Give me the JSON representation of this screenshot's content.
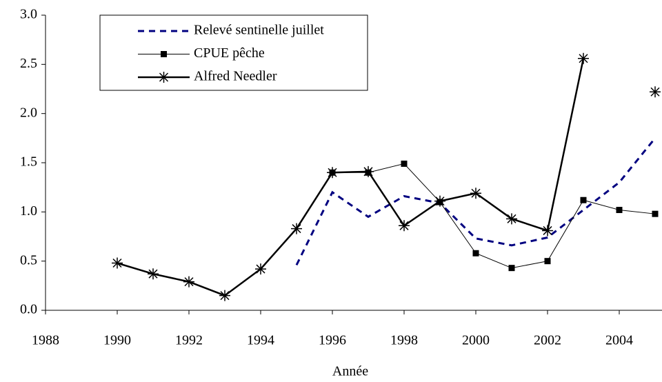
{
  "chart_data": {
    "type": "line",
    "x_label": "Année",
    "x": [
      1990,
      1991,
      1992,
      1993,
      1994,
      1995,
      1996,
      1997,
      1998,
      1999,
      2000,
      2001,
      2002,
      2003,
      2004,
      2005
    ],
    "series": [
      {
        "name": "Relevé sentinelle juillet",
        "color": "#000080",
        "line_style": "dashed",
        "marker": "none",
        "values": [
          null,
          null,
          null,
          null,
          null,
          0.46,
          1.2,
          0.95,
          1.16,
          1.09,
          0.73,
          0.66,
          0.74,
          1.02,
          1.3,
          1.75
        ]
      },
      {
        "name": "CPUE pêche",
        "color": "#000000",
        "line_style": "thin",
        "marker": "square",
        "values": [
          null,
          null,
          null,
          null,
          null,
          null,
          1.4,
          1.4,
          1.49,
          1.1,
          0.58,
          0.43,
          0.5,
          1.12,
          1.02,
          0.98
        ]
      },
      {
        "name": "Alfred Needler",
        "color": "#000000",
        "line_style": "thick",
        "marker": "asterisk",
        "values": [
          0.48,
          0.37,
          0.29,
          0.15,
          0.42,
          0.83,
          1.4,
          1.41,
          0.86,
          1.11,
          1.19,
          0.93,
          0.81,
          2.56,
          null,
          2.22
        ]
      }
    ],
    "xlim": [
      1988,
      2005
    ],
    "xticks": [
      1988,
      1990,
      1992,
      1994,
      1996,
      1998,
      2000,
      2002,
      2004
    ],
    "ylim": [
      0,
      3
    ],
    "yticks": [
      {
        "value": 0,
        "label": "0.0"
      },
      0.5,
      {
        "value": 1,
        "label": "1.0"
      },
      1.5,
      {
        "value": 2,
        "label": "2.0"
      },
      2.5,
      {
        "value": 3,
        "label": "3.0"
      }
    ],
    "grid": false,
    "legend": "upper-left"
  }
}
